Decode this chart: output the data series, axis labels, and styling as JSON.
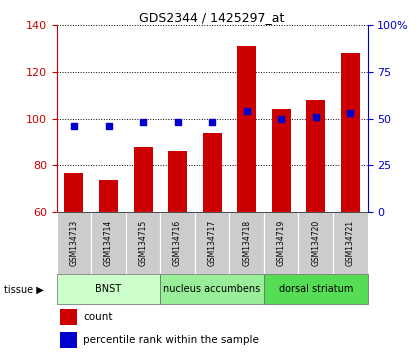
{
  "title": "GDS2344 / 1425297_at",
  "samples": [
    "GSM134713",
    "GSM134714",
    "GSM134715",
    "GSM134716",
    "GSM134717",
    "GSM134718",
    "GSM134719",
    "GSM134720",
    "GSM134721"
  ],
  "counts": [
    77,
    74,
    88,
    86,
    94,
    131,
    104,
    108,
    128
  ],
  "percentiles": [
    46,
    46,
    48,
    48,
    48,
    54,
    50,
    51,
    53
  ],
  "ylim_left": [
    60,
    140
  ],
  "ylim_right": [
    0,
    100
  ],
  "yticks_left": [
    60,
    80,
    100,
    120,
    140
  ],
  "yticks_right": [
    0,
    25,
    50,
    75,
    100
  ],
  "bar_color": "#cc0000",
  "dot_color": "#0000cc",
  "tissue_groups": [
    {
      "label": "BNST",
      "start": 0,
      "end": 3,
      "color": "#ccffcc"
    },
    {
      "label": "nucleus accumbens",
      "start": 3,
      "end": 6,
      "color": "#99ee99"
    },
    {
      "label": "dorsal striatum",
      "start": 6,
      "end": 9,
      "color": "#55dd55"
    }
  ],
  "legend_count": "count",
  "legend_percentile": "percentile rank within the sample",
  "sample_bg_color": "#cccccc",
  "right_axis_label_color": "#0000cc",
  "left_axis_label_color": "#cc0000",
  "tissue_label": "tissue"
}
